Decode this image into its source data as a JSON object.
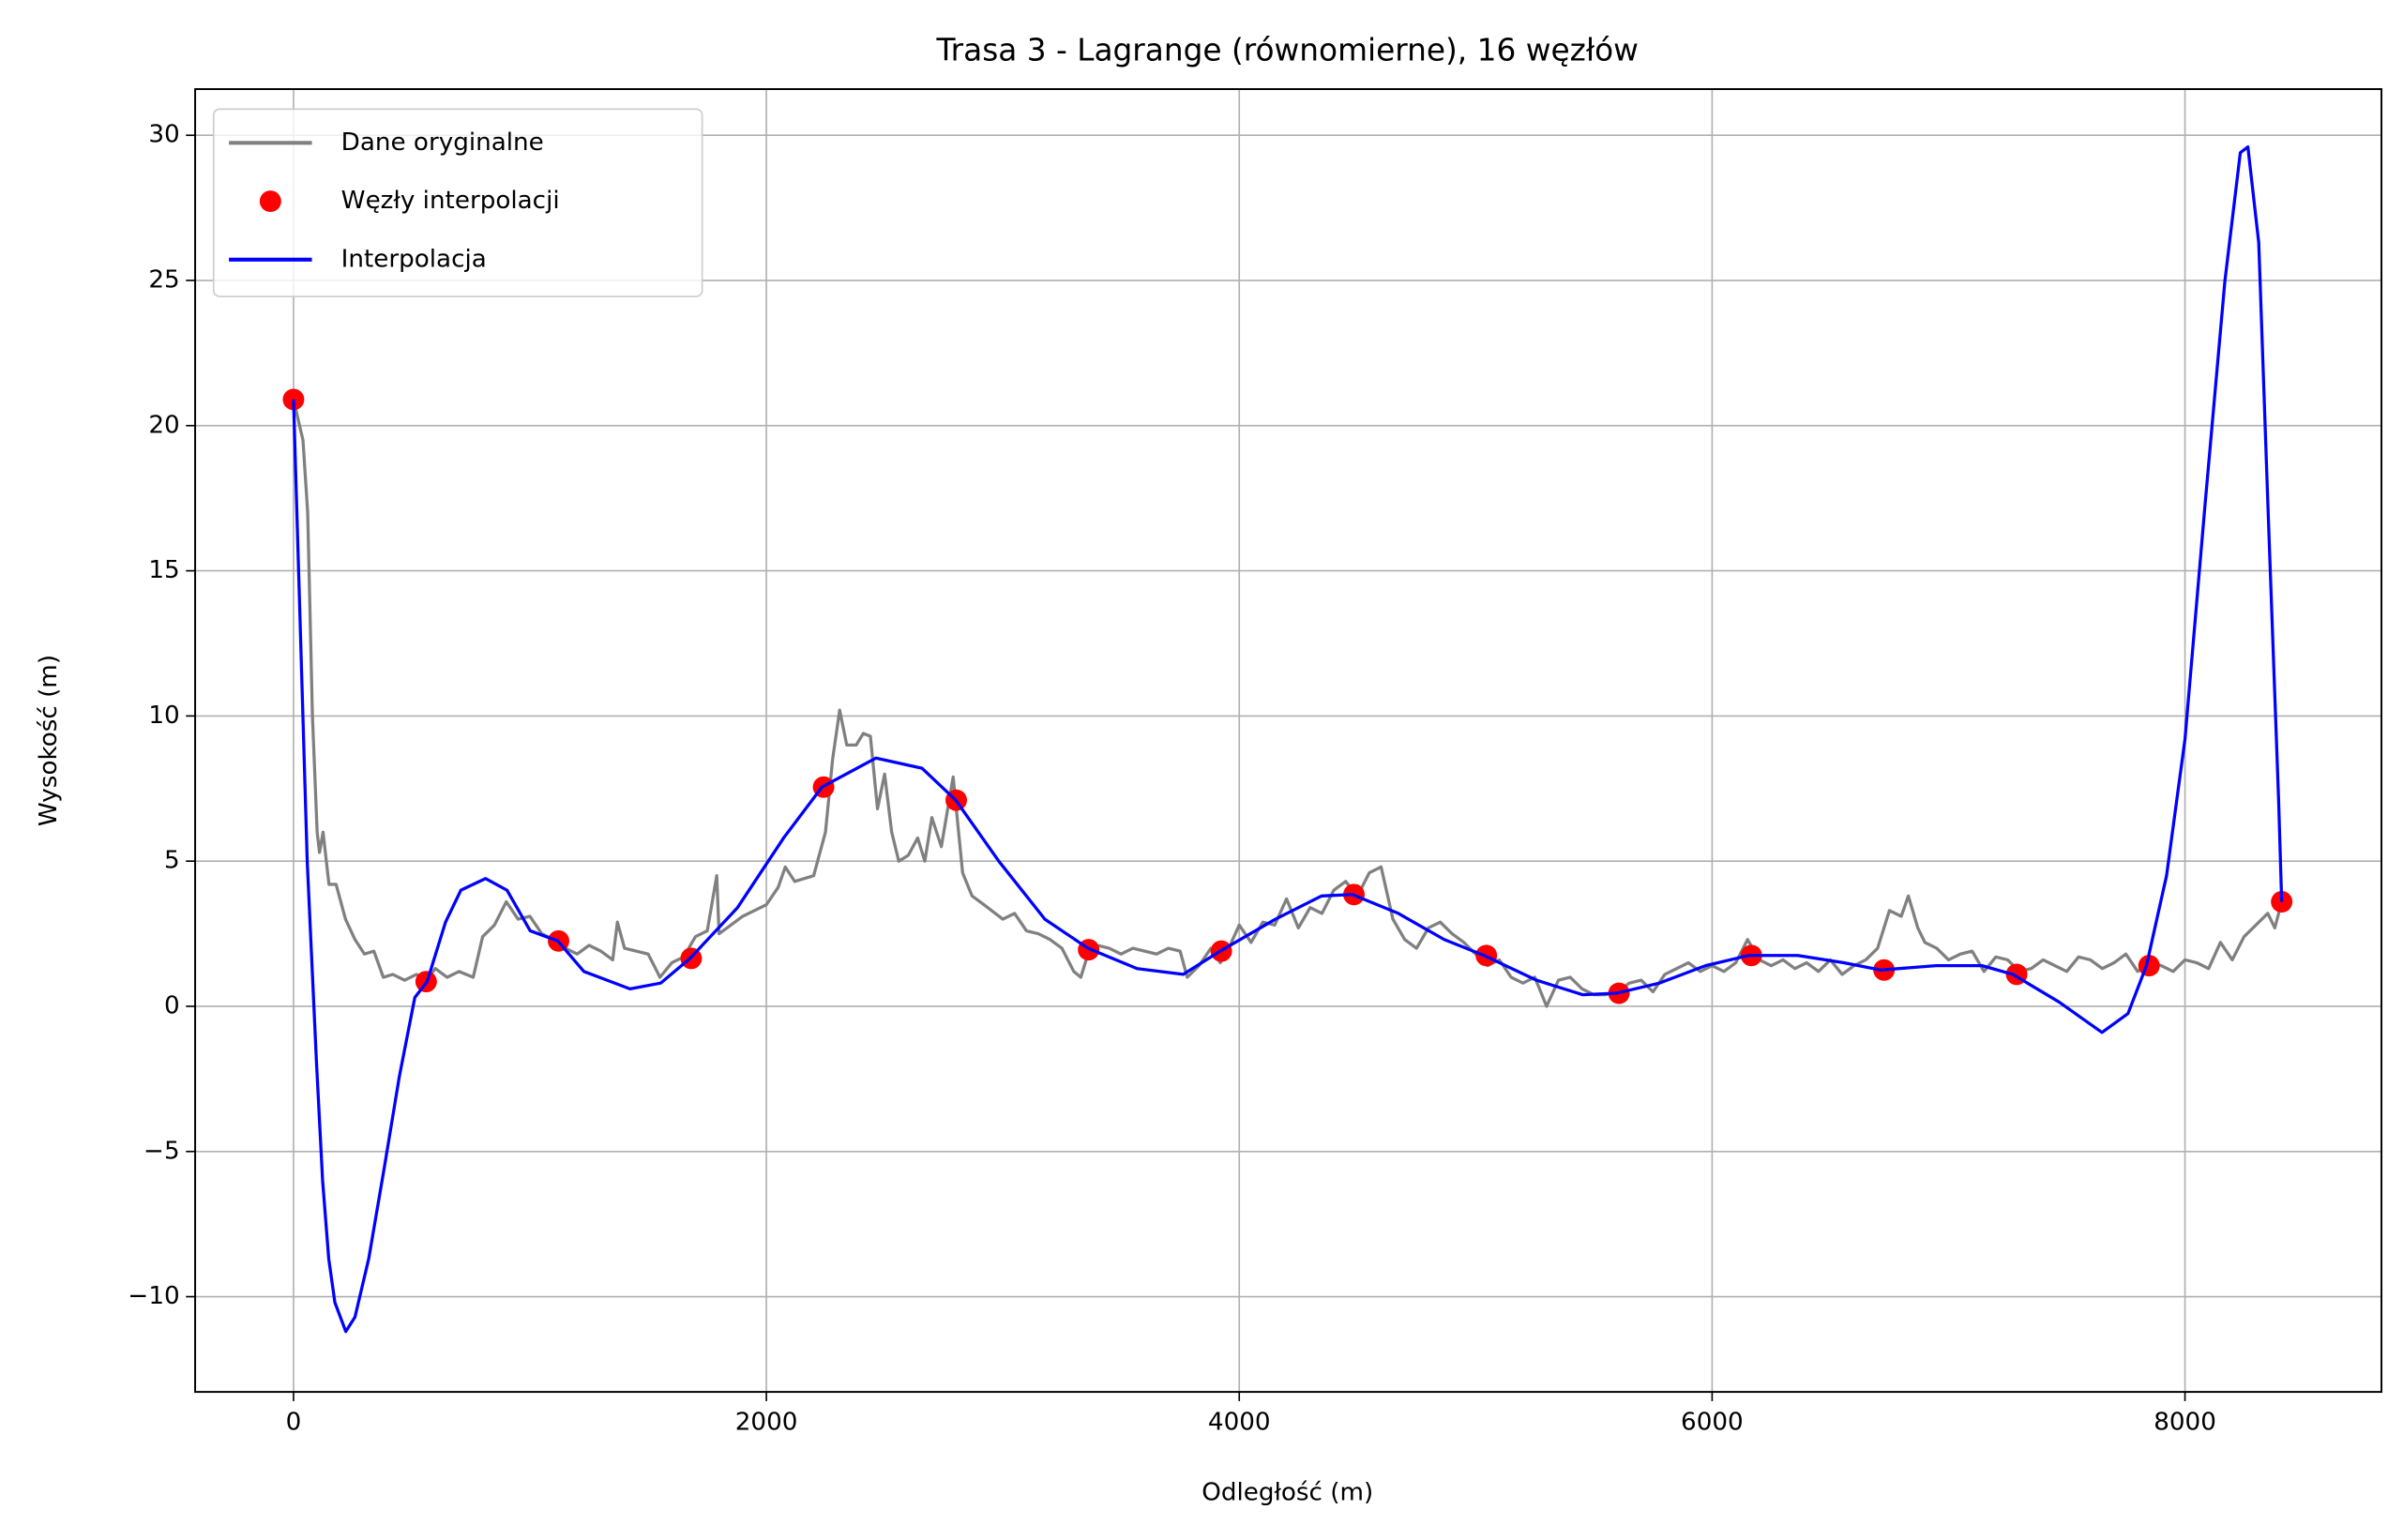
{
  "chart_data": {
    "type": "line",
    "title": "Trasa 3 - Lagrange (równomierne), 16 węzłów",
    "x_label": "Odległość (m)",
    "y_label": "Wysokość (m)",
    "xlim": [
      -416,
      8831
    ],
    "ylim": [
      -13.28,
      31.59
    ],
    "xticks": [
      0,
      2000,
      4000,
      6000,
      8000
    ],
    "yticks": [
      {
        "value": -10,
        "label": "−10"
      },
      {
        "value": -5,
        "label": "−5"
      },
      0,
      5,
      10,
      15,
      20,
      25,
      30
    ],
    "grid": true,
    "legend": "upper left",
    "series": [
      {
        "name": "Dane oryginalne",
        "style": "line",
        "color": "#808080",
        "x": [
          0,
          40,
          60,
          80,
          100,
          110,
          125,
          150,
          180,
          220,
          260,
          300,
          340,
          380,
          420,
          470,
          520,
          560,
          600,
          650,
          700,
          760,
          800,
          850,
          900,
          950,
          1000,
          1050,
          1100,
          1150,
          1200,
          1250,
          1300,
          1350,
          1370,
          1400,
          1450,
          1500,
          1550,
          1600,
          1650,
          1700,
          1750,
          1790,
          1800,
          1850,
          1900,
          1950,
          2000,
          2050,
          2080,
          2120,
          2200,
          2250,
          2280,
          2310,
          2340,
          2380,
          2410,
          2440,
          2470,
          2500,
          2530,
          2560,
          2600,
          2640,
          2670,
          2700,
          2740,
          2790,
          2830,
          2870,
          2920,
          3000,
          3050,
          3100,
          3150,
          3200,
          3250,
          3300,
          3330,
          3360,
          3400,
          3450,
          3500,
          3550,
          3600,
          3650,
          3700,
          3750,
          3780,
          3830,
          3880,
          3920,
          3950,
          4000,
          4050,
          4100,
          4150,
          4200,
          4250,
          4300,
          4350,
          4400,
          4450,
          4500,
          4550,
          4600,
          4650,
          4700,
          4750,
          4800,
          4850,
          4900,
          4950,
          5000,
          5050,
          5100,
          5150,
          5200,
          5250,
          5300,
          5350,
          5400,
          5450,
          5500,
          5550,
          5600,
          5650,
          5700,
          5750,
          5800,
          5850,
          5900,
          5950,
          6000,
          6050,
          6100,
          6150,
          6200,
          6250,
          6300,
          6350,
          6400,
          6450,
          6500,
          6550,
          6600,
          6650,
          6700,
          6750,
          6800,
          6830,
          6870,
          6900,
          6950,
          7000,
          7050,
          7100,
          7150,
          7200,
          7250,
          7300,
          7350,
          7400,
          7450,
          7500,
          7550,
          7600,
          7650,
          7700,
          7750,
          7800,
          7850,
          7900,
          7950,
          8000,
          8050,
          8100,
          8150,
          8200,
          8250,
          8300,
          8350,
          8380,
          8409
        ],
        "values": [
          20.9,
          19.5,
          17,
          10,
          6,
          5.3,
          6,
          4.2,
          4.2,
          3,
          2.3,
          1.8,
          1.9,
          1,
          1.1,
          0.9,
          1.1,
          0.9,
          1.3,
          1,
          1.2,
          1,
          2.4,
          2.8,
          3.6,
          3,
          3.1,
          2.5,
          2.3,
          2,
          1.8,
          2.1,
          1.9,
          1.6,
          2.9,
          2,
          1.9,
          1.8,
          1,
          1.5,
          1.7,
          2.4,
          2.6,
          4.5,
          2.5,
          2.8,
          3.1,
          3.3,
          3.5,
          4.1,
          4.8,
          4.3,
          4.5,
          6,
          8.5,
          10.2,
          9,
          9,
          9.4,
          9.3,
          6.8,
          8,
          6,
          5,
          5.2,
          5.8,
          5,
          6.5,
          5.5,
          7.9,
          4.6,
          3.8,
          3.5,
          3,
          3.2,
          2.6,
          2.5,
          2.3,
          2,
          1.2,
          1,
          1.8,
          2.1,
          2,
          1.8,
          2,
          1.9,
          1.8,
          2,
          1.9,
          1,
          1.4,
          2,
          1.5,
          1.9,
          2.8,
          2.2,
          2.9,
          2.8,
          3.7,
          2.7,
          3.4,
          3.2,
          4,
          4.3,
          3.8,
          4.6,
          4.8,
          3,
          2.3,
          2,
          2.7,
          2.9,
          2.5,
          2.2,
          1.8,
          1.4,
          1.6,
          1,
          0.8,
          1,
          0,
          0.9,
          1,
          0.6,
          0.4,
          0.4,
          0.5,
          0.8,
          0.9,
          0.5,
          1.1,
          1.3,
          1.5,
          1.2,
          1.4,
          1.2,
          1.5,
          2.3,
          1.6,
          1.4,
          1.6,
          1.3,
          1.5,
          1.2,
          1.6,
          1.1,
          1.4,
          1.6,
          2,
          3.3,
          3.1,
          3.8,
          2.7,
          2.2,
          2,
          1.6,
          1.8,
          1.9,
          1.2,
          1.7,
          1.6,
          1.2,
          1.3,
          1.6,
          1.4,
          1.2,
          1.7,
          1.6,
          1.3,
          1.5,
          1.8,
          1.2,
          1.5,
          1.4,
          1.2,
          1.6,
          1.5,
          1.3,
          2.2,
          1.6,
          2.4,
          2.8,
          3.2,
          2.7,
          3.6
        ]
      },
      {
        "name": "Węzły interpolacji",
        "style": "marker",
        "color": "#ff0000",
        "x": [
          0,
          561,
          1121,
          1682,
          2242,
          2803,
          3363,
          3924,
          4485,
          5045,
          5606,
          6166,
          6727,
          7288,
          7848,
          8409
        ],
        "values": [
          20.9,
          0.85,
          2.25,
          1.65,
          7.55,
          7.1,
          1.95,
          1.9,
          3.85,
          1.75,
          0.45,
          1.75,
          1.25,
          1.1,
          1.4,
          3.6
        ]
      },
      {
        "name": "Interpolacja",
        "style": "line",
        "color": "#0000ff",
        "x": [
          0,
          58,
          97,
          123,
          149,
          175,
          221,
          260,
          318,
          383,
          448,
          513,
          565,
          643,
          708,
          812,
          903,
          1001,
          1118,
          1228,
          1423,
          1553,
          1677,
          1878,
          2073,
          2235,
          2463,
          2658,
          2801,
          2983,
          3178,
          3360,
          3568,
          3763,
          3919,
          4153,
          4348,
          4478,
          4673,
          4867,
          5036,
          5257,
          5452,
          5595,
          5777,
          5972,
          6154,
          6362,
          6557,
          6713,
          6947,
          7142,
          7272,
          7467,
          7649,
          7759,
          7837,
          7922,
          8000,
          8084,
          8169,
          8234,
          8266,
          8312,
          8351,
          8396,
          8409
        ],
        "values": [
          20.9,
          5,
          -1.9,
          -6,
          -8.7,
          -10.2,
          -11.2,
          -10.7,
          -8.7,
          -5.6,
          -2.4,
          0.3,
          0.85,
          2.9,
          4,
          4.4,
          4,
          2.6,
          2.25,
          1.2,
          0.6,
          0.8,
          1.65,
          3.4,
          5.8,
          7.55,
          8.55,
          8.2,
          7.1,
          5,
          3,
          2,
          1.3,
          1.1,
          1.9,
          3,
          3.8,
          3.85,
          3.2,
          2.3,
          1.75,
          0.9,
          0.4,
          0.45,
          0.8,
          1.4,
          1.75,
          1.75,
          1.5,
          1.25,
          1.4,
          1.4,
          1.1,
          0.15,
          -0.9,
          -0.25,
          1.4,
          4.5,
          9.2,
          17.2,
          25,
          29.4,
          29.6,
          26.3,
          17.2,
          7.1,
          3.6
        ]
      }
    ]
  }
}
